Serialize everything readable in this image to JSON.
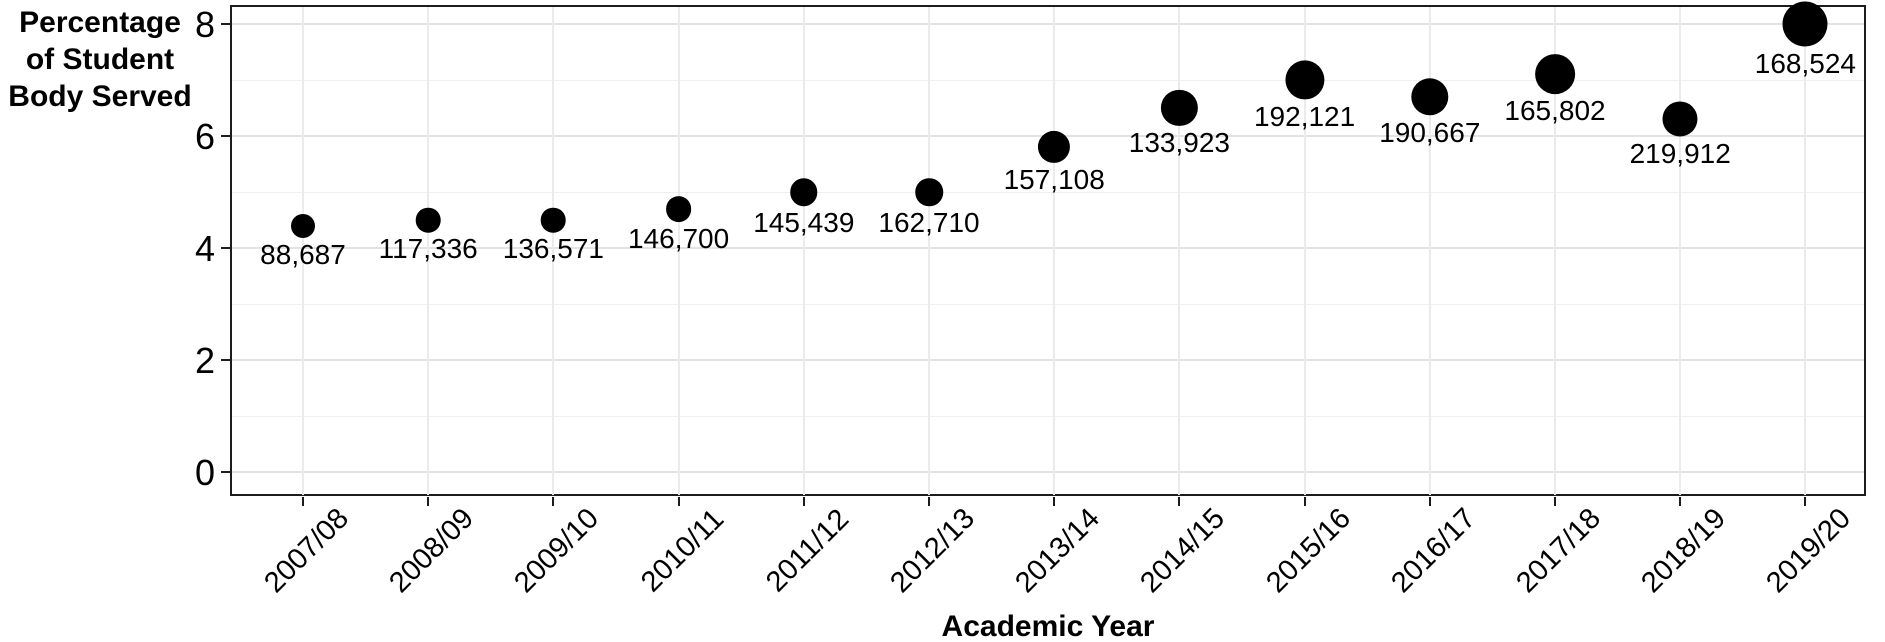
{
  "chart_data": {
    "type": "scatter",
    "title": "",
    "xlabel": "Academic Year",
    "ylabel": "Percentage of Student Body Served",
    "ylabel_lines": [
      "Percentage",
      "of Student",
      "Body Served"
    ],
    "categories": [
      "2007/08",
      "2008/09",
      "2009/10",
      "2010/11",
      "2011/12",
      "2012/13",
      "2013/14",
      "2014/15",
      "2015/16",
      "2016/17",
      "2017/18",
      "2018/19",
      "2019/20"
    ],
    "series": [
      {
        "name": "Percentage of Student Body Served",
        "values": [
          4.4,
          4.5,
          4.5,
          4.7,
          5.0,
          5.0,
          5.8,
          6.5,
          7.0,
          6.7,
          7.1,
          6.3,
          8.0
        ],
        "point_labels": [
          "88,687",
          "117,336",
          "136,571",
          "146,700",
          "145,439",
          "162,710",
          "157,108",
          "133,923",
          "192,121",
          "190,667",
          "165,802",
          "219,912",
          "168,524"
        ]
      }
    ],
    "ylim": [
      0,
      8
    ],
    "yticks": [
      0,
      2,
      4,
      6,
      8
    ],
    "yticks_minor": [
      1,
      3,
      5,
      7
    ],
    "grid": true,
    "legend": "none",
    "point_color": "#000000",
    "grid_color": "#e7e7e7",
    "axis_color": "#1c1c1c",
    "background_color": "#ffffff",
    "point_size_note": "bubble size scales with percentage value"
  }
}
